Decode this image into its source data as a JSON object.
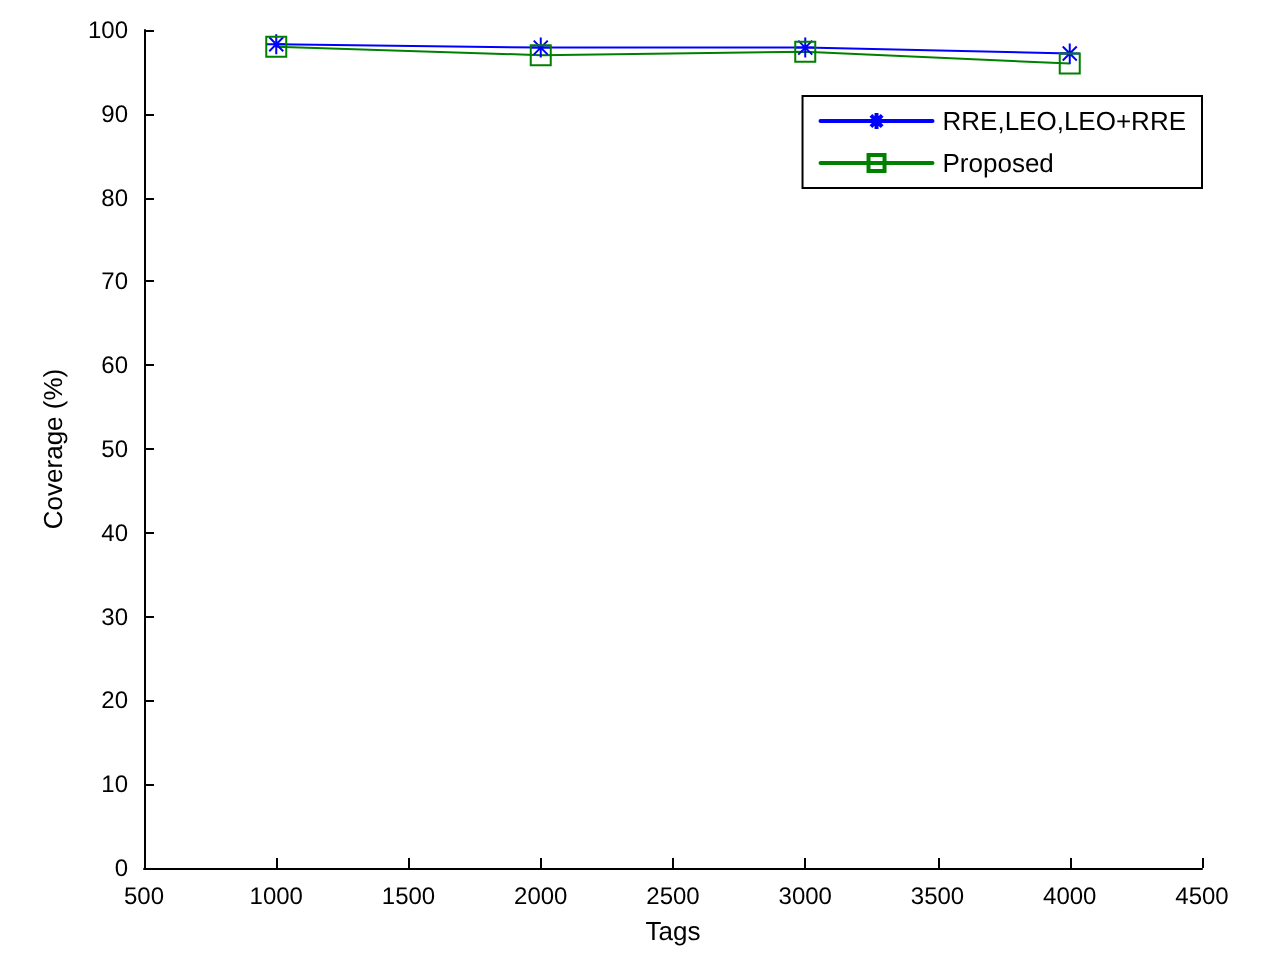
{
  "chart_data": {
    "type": "line",
    "xlabel": "Tags",
    "ylabel": "Coverage (%)",
    "x": [
      1000,
      2000,
      3000,
      4000
    ],
    "series": [
      {
        "name": "RRE,LEO,LEO+RRE",
        "color": "#0000ff",
        "marker": "cross",
        "values": [
          98.3,
          97.9,
          97.9,
          97.2
        ]
      },
      {
        "name": "Proposed",
        "color": "#008000",
        "marker": "square",
        "values": [
          98,
          97,
          97.4,
          96
        ]
      }
    ],
    "xlim": [
      500,
      4500
    ],
    "xticks": [
      500,
      1000,
      1500,
      2000,
      2500,
      3000,
      3500,
      4000,
      4500
    ],
    "ylim": [
      0,
      100
    ],
    "yticks": [
      0,
      10,
      20,
      30,
      40,
      50,
      60,
      70,
      80,
      90,
      100
    ],
    "grid": false,
    "legend": "top right",
    "line_style": "solid"
  }
}
